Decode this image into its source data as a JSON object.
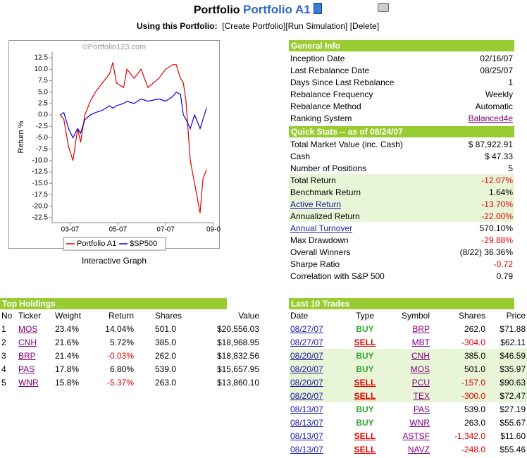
{
  "header": {
    "title": "Portfolio",
    "name": "Portfolio A1",
    "using": "Using this Portfolio:",
    "actions": [
      "[Create Portfolio]",
      "[Run Simulation]",
      "[Delete]"
    ]
  },
  "chart_data": {
    "type": "line",
    "watermark": "©Portfolio123.com",
    "y_label": "Return %",
    "caption": "Interactive Graph",
    "x": [
      2.59,
      2.74,
      2.94,
      3.12,
      3.32,
      3.44,
      3.62,
      3.85,
      4.06,
      4.35,
      4.65,
      4.79,
      4.94,
      5.24,
      5.38,
      5.68,
      5.97,
      6.26,
      6.71,
      7.0,
      7.29,
      7.44,
      7.62,
      7.74,
      7.85,
      8.03,
      8.21,
      8.44,
      8.56,
      8.71
    ],
    "series": [
      {
        "name": "Portfolio A1",
        "color": "#e00000",
        "values": [
          0,
          -1,
          -7,
          -10,
          -3,
          -6,
          0,
          3,
          5,
          7,
          9,
          11.5,
          7,
          6,
          10,
          8,
          10,
          6,
          8,
          10,
          11,
          11,
          8,
          7,
          3,
          -10,
          -15,
          -21.5,
          -14,
          -12
        ]
      },
      {
        "name": "$SP500",
        "color": "#0000e0",
        "values": [
          0,
          0.5,
          -3,
          -5,
          -3,
          -4,
          -1,
          0,
          0.5,
          1,
          2,
          1.5,
          2,
          2.5,
          3,
          2.5,
          3.5,
          3,
          3.5,
          3,
          4,
          5,
          4.5,
          0,
          -1,
          -3,
          0,
          -3,
          -1,
          1.5
        ]
      }
    ],
    "xlim": [
      2.25,
      9.0
    ],
    "xticks": [
      {
        "value": 3,
        "label": "03-07"
      },
      {
        "value": 5,
        "label": "05-07"
      },
      {
        "value": 7,
        "label": "07-07"
      },
      {
        "value": 9,
        "label": "09-0"
      }
    ],
    "ylim": [
      -23.6,
      13.9
    ],
    "yticks": [
      12.5,
      {
        "value": 10,
        "label": "10.0"
      },
      7.5,
      {
        "value": 5,
        "label": "5.0"
      },
      2.5,
      {
        "value": 0,
        "label": "0.0"
      },
      -2.5,
      {
        "value": -5,
        "label": "-5.0"
      },
      -7.5,
      {
        "value": -10,
        "label": "-10.0"
      },
      -12.5,
      {
        "value": -15,
        "label": "-15.0"
      },
      -17.5,
      {
        "value": -20,
        "label": "-20.0"
      },
      -22.5
    ]
  },
  "general_info": {
    "title": "General Info",
    "rows": [
      [
        "Inception Date",
        "02/16/07"
      ],
      [
        "Last Rebalance Date",
        "08/25/07"
      ],
      [
        "Days Since Last Rebalance",
        "1"
      ],
      [
        "Rebalance Frequency",
        "Weekly"
      ],
      [
        "Rebalance Method",
        "Automatic"
      ],
      [
        "Ranking System",
        "Balanced4e"
      ]
    ]
  },
  "quick_stats": {
    "title": "Quick Stats -- as of 08/24/07",
    "rows": [
      [
        "Total Market Value (inc. Cash)",
        "$ 87,922.91"
      ],
      [
        "Cash",
        "$ 47.33"
      ],
      [
        "Number of Positions",
        "5"
      ],
      [
        "Total Return",
        "-12.07%"
      ],
      [
        "Benchmark Return",
        "1.64%"
      ],
      [
        "Active Return",
        "-13.70%"
      ],
      [
        "Annualized Return",
        "-22.00%"
      ],
      [
        "Annual Turnover",
        "570.10%"
      ],
      [
        "Max Drawdown",
        "-29.88%"
      ],
      [
        "Overall Winners",
        "(8/22) 36.36%"
      ],
      [
        "Sharpe Ratio",
        "-0.72"
      ],
      [
        "Correlation with S&P 500",
        "0.79"
      ]
    ]
  },
  "top_holdings": {
    "title": "Top Holdings",
    "columns": [
      "No",
      "Ticker",
      "Weight",
      "Return",
      "Shares",
      "Value"
    ],
    "rows": [
      [
        "1",
        "MOS",
        "23.4%",
        "14.04%",
        "501.0",
        "$20,556.03"
      ],
      [
        "2",
        "CNH",
        "21.6%",
        "5.72%",
        "385.0",
        "$18,968.95"
      ],
      [
        "3",
        "BRP",
        "21.4%",
        "-0.03%",
        "262.0",
        "$18,832.56"
      ],
      [
        "4",
        "PAS",
        "17.8%",
        "6.80%",
        "539.0",
        "$15,657.95"
      ],
      [
        "5",
        "WNR",
        "15.8%",
        "-5.37%",
        "263.0",
        "$13,860.10"
      ]
    ]
  },
  "last_trades": {
    "title": "Last 10 Trades",
    "columns": [
      "Date",
      "Type",
      "Symbol",
      "Shares",
      "Price"
    ],
    "rows": [
      [
        "08/27/07",
        "BUY",
        "BRP",
        "262.0",
        "$71.88"
      ],
      [
        "08/27/07",
        "SELL",
        "MBT",
        "-304.0",
        "$62.11"
      ],
      [
        "08/20/07",
        "BUY",
        "CNH",
        "385.0",
        "$46.59"
      ],
      [
        "08/20/07",
        "BUY",
        "MOS",
        "501.0",
        "$35.97"
      ],
      [
        "08/20/07",
        "SELL",
        "PCU",
        "-157.0",
        "$90.63"
      ],
      [
        "08/20/07",
        "SELL",
        "TEX",
        "-300.0",
        "$72.47"
      ],
      [
        "08/13/07",
        "BUY",
        "PAS",
        "539.0",
        "$27.19"
      ],
      [
        "08/13/07",
        "BUY",
        "WNR",
        "263.0",
        "$55.67"
      ],
      [
        "08/13/07",
        "SELL",
        "ASTSF",
        "-1,342.0",
        "$11.60"
      ],
      [
        "08/13/07",
        "SELL",
        "NAVZ",
        "-248.0",
        "$55.46"
      ]
    ]
  }
}
